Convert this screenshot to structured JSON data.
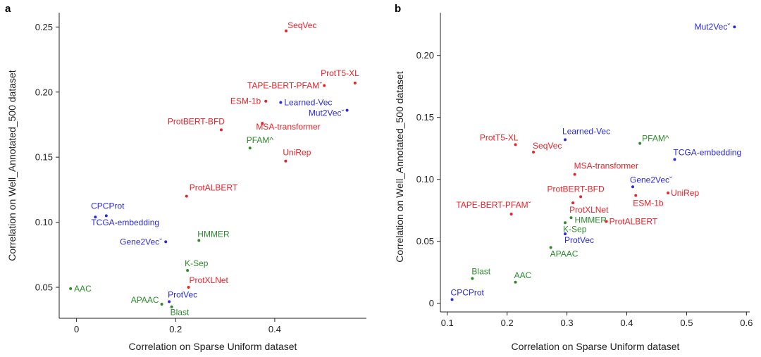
{
  "colors": {
    "red": "#e8232a",
    "blue": "#2a2ad8",
    "green": "#2d8a2d"
  },
  "chart_data": [
    {
      "panel": "a",
      "type": "scatter",
      "xlabel": "Correlation on Sparse Uniform dataset",
      "ylabel": "Correlation on Well_Annotated_500 dataset",
      "xlim": [
        -0.035,
        0.585
      ],
      "ylim": [
        0.0262,
        0.261
      ],
      "xticks": [
        0,
        0.2,
        0.4
      ],
      "xtick_labels": [
        "0",
        "0.2",
        "0.4"
      ],
      "yticks": [
        0.05,
        0.1,
        0.15,
        0.2,
        0.25
      ],
      "ytick_labels": [
        "0.05",
        "0.10",
        "0.15",
        "0.20",
        "0.25"
      ],
      "points": [
        {
          "name": "SeqVec",
          "x": 0.423,
          "y": 0.247,
          "group": "red",
          "anchor": "start",
          "dx": 2,
          "dy": -4
        },
        {
          "name": "ProtT5-XL",
          "x": 0.562,
          "y": 0.207,
          "group": "red",
          "anchor": "end",
          "dx": 6,
          "dy": -10
        },
        {
          "name": "TAPE-BERT-PFAMˇ",
          "x": 0.5,
          "y": 0.205,
          "group": "red",
          "anchor": "end",
          "dx": -3,
          "dy": 4
        },
        {
          "name": "ESM-1b",
          "x": 0.382,
          "y": 0.193,
          "group": "red",
          "anchor": "end",
          "dx": -7,
          "dy": 4
        },
        {
          "name": "Learned-Vec",
          "x": 0.412,
          "y": 0.192,
          "group": "blue",
          "anchor": "start",
          "dx": 5,
          "dy": 4
        },
        {
          "name": "Mut2Vecˇ",
          "x": 0.546,
          "y": 0.186,
          "group": "blue",
          "anchor": "end",
          "dx": -4,
          "dy": 8
        },
        {
          "name": "ProtBERT-BFD",
          "x": 0.292,
          "y": 0.171,
          "group": "red",
          "anchor": "end",
          "dx": 5,
          "dy": -8
        },
        {
          "name": "MSA-transformer",
          "x": 0.375,
          "y": 0.176,
          "group": "red",
          "anchor": "start",
          "dx": -9,
          "dy": 9
        },
        {
          "name": "PFAM^",
          "x": 0.35,
          "y": 0.157,
          "group": "green",
          "anchor": "start",
          "dx": -5,
          "dy": -7
        },
        {
          "name": "UniRep",
          "x": 0.422,
          "y": 0.147,
          "group": "red",
          "anchor": "start",
          "dx": -4,
          "dy": -8
        },
        {
          "name": "ProtALBERT",
          "x": 0.222,
          "y": 0.12,
          "group": "red",
          "anchor": "start",
          "dx": 4,
          "dy": -8
        },
        {
          "name": "CPCProt",
          "x": 0.06,
          "y": 0.105,
          "group": "blue",
          "anchor": "middle",
          "dx": 2,
          "dy": -10
        },
        {
          "name": "TCGA-embedding",
          "x": 0.038,
          "y": 0.104,
          "group": "blue",
          "anchor": "start",
          "dx": -6,
          "dy": 12
        },
        {
          "name": "HMMER",
          "x": 0.247,
          "y": 0.086,
          "group": "green",
          "anchor": "start",
          "dx": -2,
          "dy": -5
        },
        {
          "name": "Gene2Vecˇ",
          "x": 0.18,
          "y": 0.085,
          "group": "blue",
          "anchor": "end",
          "dx": -5,
          "dy": 4
        },
        {
          "name": "K-Sep",
          "x": 0.224,
          "y": 0.063,
          "group": "green",
          "anchor": "start",
          "dx": -4,
          "dy": -6
        },
        {
          "name": "ProtXLNet",
          "x": 0.226,
          "y": 0.05,
          "group": "red",
          "anchor": "start",
          "dx": 1,
          "dy": -6
        },
        {
          "name": "AAC",
          "x": -0.012,
          "y": 0.049,
          "group": "green",
          "anchor": "start",
          "dx": 5,
          "dy": 4
        },
        {
          "name": "ProtVec",
          "x": 0.187,
          "y": 0.039,
          "group": "blue",
          "anchor": "start",
          "dx": -2,
          "dy": -6
        },
        {
          "name": "APAAC",
          "x": 0.172,
          "y": 0.037,
          "group": "green",
          "anchor": "end",
          "dx": -4,
          "dy": -2
        },
        {
          "name": "Blast",
          "x": 0.192,
          "y": 0.035,
          "group": "green",
          "anchor": "start",
          "dx": -2,
          "dy": 12
        }
      ]
    },
    {
      "panel": "b",
      "type": "scatter",
      "xlabel": "Correlation on Sparse Uniform dataset",
      "ylabel": "Correlation on Well_Annotated_500 dataset",
      "xlim": [
        0.0885,
        0.6055
      ],
      "ylim": [
        -0.007,
        0.2345
      ],
      "xticks": [
        0.1,
        0.2,
        0.3,
        0.4,
        0.5,
        0.6
      ],
      "xtick_labels": [
        "0.1",
        "0.2",
        "0.3",
        "0.4",
        "0.5",
        "0.6"
      ],
      "yticks": [
        0,
        0.05,
        0.1,
        0.15,
        0.2
      ],
      "ytick_labels": [
        "0",
        "0.05",
        "0.10",
        "0.15",
        "0.20"
      ],
      "points": [
        {
          "name": "Mut2Vecˇ",
          "x": 0.58,
          "y": 0.223,
          "group": "blue",
          "anchor": "end",
          "dx": -6,
          "dy": 4
        },
        {
          "name": "Learned-Vec",
          "x": 0.297,
          "y": 0.132,
          "group": "blue",
          "anchor": "start",
          "dx": -4,
          "dy": -8
        },
        {
          "name": "PFAM^",
          "x": 0.422,
          "y": 0.129,
          "group": "green",
          "anchor": "start",
          "dx": 3,
          "dy": -3
        },
        {
          "name": "ProtT5-XL",
          "x": 0.214,
          "y": 0.128,
          "group": "red",
          "anchor": "end",
          "dx": 4,
          "dy": -6
        },
        {
          "name": "SeqVec",
          "x": 0.244,
          "y": 0.122,
          "group": "red",
          "anchor": "start",
          "dx": -1,
          "dy": -5
        },
        {
          "name": "TCGA-embedding",
          "x": 0.48,
          "y": 0.116,
          "group": "blue",
          "anchor": "start",
          "dx": -2,
          "dy": -6
        },
        {
          "name": "MSA-transformer",
          "x": 0.313,
          "y": 0.104,
          "group": "red",
          "anchor": "start",
          "dx": -1,
          "dy": -8
        },
        {
          "name": "Gene2Vecˇ",
          "x": 0.41,
          "y": 0.094,
          "group": "blue",
          "anchor": "start",
          "dx": -4,
          "dy": -6
        },
        {
          "name": "ProtBERT-BFD",
          "x": 0.323,
          "y": 0.086,
          "group": "red",
          "anchor": "middle",
          "dx": -7,
          "dy": -7
        },
        {
          "name": "ESM-1b",
          "x": 0.415,
          "y": 0.087,
          "group": "red",
          "anchor": "start",
          "dx": -4,
          "dy": 15
        },
        {
          "name": "UniRep",
          "x": 0.469,
          "y": 0.089,
          "group": "red",
          "anchor": "start",
          "dx": 4,
          "dy": 4
        },
        {
          "name": "ProtXLNet",
          "x": 0.31,
          "y": 0.081,
          "group": "red",
          "anchor": "start",
          "dx": -5,
          "dy": 14
        },
        {
          "name": "TAPE-BERT-PFAMˇ",
          "x": 0.207,
          "y": 0.072,
          "group": "red",
          "anchor": "end",
          "dx": 28,
          "dy": -9
        },
        {
          "name": "HMMER",
          "x": 0.307,
          "y": 0.069,
          "group": "green",
          "anchor": "start",
          "dx": 5,
          "dy": 7
        },
        {
          "name": "ProtALBERT",
          "x": 0.366,
          "y": 0.066,
          "group": "red",
          "anchor": "start",
          "dx": 4,
          "dy": 4
        },
        {
          "name": "K-Sep",
          "x": 0.297,
          "y": 0.065,
          "group": "green",
          "anchor": "start",
          "dx": -3,
          "dy": 13
        },
        {
          "name": "ProtVec",
          "x": 0.297,
          "y": 0.056,
          "group": "blue",
          "anchor": "start",
          "dx": -1,
          "dy": 13
        },
        {
          "name": "APAAC",
          "x": 0.273,
          "y": 0.045,
          "group": "green",
          "anchor": "start",
          "dx": -1,
          "dy": 13
        },
        {
          "name": "Blast",
          "x": 0.142,
          "y": 0.02,
          "group": "green",
          "anchor": "start",
          "dx": -1,
          "dy": -6
        },
        {
          "name": "AAC",
          "x": 0.214,
          "y": 0.017,
          "group": "green",
          "anchor": "start",
          "dx": -2,
          "dy": -6
        },
        {
          "name": "CPCProt",
          "x": 0.108,
          "y": 0.003,
          "group": "blue",
          "anchor": "start",
          "dx": -2,
          "dy": -6
        }
      ]
    }
  ]
}
